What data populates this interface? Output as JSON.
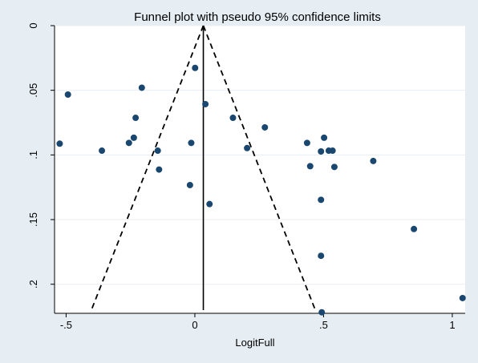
{
  "chart_data": {
    "type": "scatter",
    "title": "Funnel plot with pseudo 95% confidence limits",
    "xlabel": "LogitFull",
    "ylabel": "",
    "xlim": [
      -0.545,
      1.05
    ],
    "ylim": [
      0,
      0.2225
    ],
    "y_reversed": true,
    "grid": true,
    "x_ticks": [
      {
        "value": -0.5,
        "label": "-.5"
      },
      {
        "value": 0,
        "label": "0"
      },
      {
        "value": 0.5,
        "label": ".5"
      },
      {
        "value": 1,
        "label": "1"
      }
    ],
    "y_ticks": [
      {
        "value": 0,
        "label": "0"
      },
      {
        "value": 0.05,
        "label": ".05"
      },
      {
        "value": 0.1,
        "label": ".1"
      },
      {
        "value": 0.15,
        "label": ".15"
      },
      {
        "value": 0.2,
        "label": ".2"
      }
    ],
    "pooled_estimate": 0.033,
    "funnel_base_se": 0.22,
    "funnel_lower_at_base": -0.402,
    "funnel_upper_at_base": 0.468,
    "points": [
      {
        "x": -0.525,
        "y": 0.0913
      },
      {
        "x": -0.493,
        "y": 0.0533
      },
      {
        "x": -0.361,
        "y": 0.0967
      },
      {
        "x": -0.256,
        "y": 0.0907
      },
      {
        "x": -0.237,
        "y": 0.0867
      },
      {
        "x": -0.23,
        "y": 0.0713
      },
      {
        "x": -0.206,
        "y": 0.048
      },
      {
        "x": -0.144,
        "y": 0.0967
      },
      {
        "x": -0.139,
        "y": 0.1113
      },
      {
        "x": -0.019,
        "y": 0.1233
      },
      {
        "x": -0.014,
        "y": 0.0907
      },
      {
        "x": 0.001,
        "y": 0.0327
      },
      {
        "x": 0.041,
        "y": 0.0607
      },
      {
        "x": 0.057,
        "y": 0.138
      },
      {
        "x": 0.148,
        "y": 0.0713
      },
      {
        "x": 0.203,
        "y": 0.0947
      },
      {
        "x": 0.272,
        "y": 0.0787
      },
      {
        "x": 0.436,
        "y": 0.0907
      },
      {
        "x": 0.448,
        "y": 0.1087
      },
      {
        "x": 0.49,
        "y": 0.0973
      },
      {
        "x": 0.49,
        "y": 0.1347
      },
      {
        "x": 0.49,
        "y": 0.178
      },
      {
        "x": 0.493,
        "y": 0.2217
      },
      {
        "x": 0.502,
        "y": 0.0867
      },
      {
        "x": 0.52,
        "y": 0.0967
      },
      {
        "x": 0.535,
        "y": 0.0967
      },
      {
        "x": 0.542,
        "y": 0.1093
      },
      {
        "x": 0.693,
        "y": 0.1047
      },
      {
        "x": 0.851,
        "y": 0.1573
      },
      {
        "x": 1.04,
        "y": 0.2107
      }
    ],
    "colors": {
      "outer_background": "#e6eef4",
      "plot_background": "#ffffff",
      "grid": "#e9eef2",
      "marker": "#1a476f",
      "lines": "#000000"
    }
  }
}
